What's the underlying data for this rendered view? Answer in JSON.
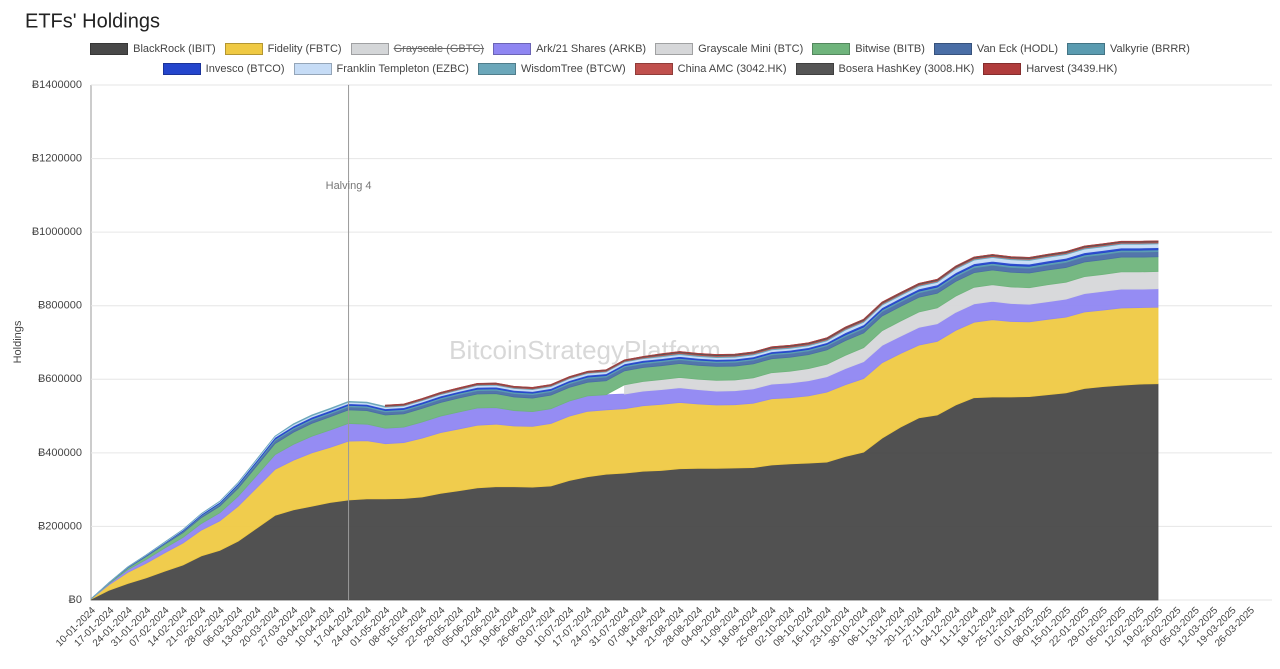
{
  "chart_data": {
    "type": "stacked-area",
    "title": "ETFs' Holdings",
    "y_label": "Holdings",
    "watermark": "BitcoinStrategyPlatform",
    "categories": [
      "10-01-2024",
      "17-01-2024",
      "24-01-2024",
      "31-01-2024",
      "07-02-2024",
      "14-02-2024",
      "21-02-2024",
      "28-02-2024",
      "06-03-2024",
      "13-03-2024",
      "20-03-2024",
      "27-03-2024",
      "03-04-2024",
      "10-04-2024",
      "17-04-2024",
      "24-04-2024",
      "01-05-2024",
      "08-05-2024",
      "15-05-2024",
      "22-05-2024",
      "29-05-2024",
      "05-06-2024",
      "12-06-2024",
      "19-06-2024",
      "26-06-2024",
      "03-07-2024",
      "10-07-2024",
      "17-07-2024",
      "24-07-2024",
      "31-07-2024",
      "07-08-2024",
      "14-08-2024",
      "21-08-2024",
      "28-08-2024",
      "04-09-2024",
      "11-09-2024",
      "18-09-2024",
      "25-09-2024",
      "02-10-2024",
      "09-10-2024",
      "16-10-2024",
      "23-10-2024",
      "30-10-2024",
      "06-11-2024",
      "13-11-2024",
      "20-11-2024",
      "27-11-2024",
      "04-12-2024",
      "11-12-2024",
      "18-12-2024",
      "25-12-2024",
      "01-01-2025",
      "08-01-2025",
      "15-01-2025",
      "22-01-2025",
      "29-01-2025",
      "05-02-2025",
      "12-02-2025",
      "19-02-2025",
      "26-02-2025",
      "05-03-2025",
      "12-03-2025",
      "19-03-2025",
      "26-03-2025"
    ],
    "ylim": [
      0,
      1400000
    ],
    "yticks": [
      {
        "value": 0,
        "label": "Ƀ0"
      },
      {
        "value": 200000,
        "label": "Ƀ200000"
      },
      {
        "value": 400000,
        "label": "Ƀ400000"
      },
      {
        "value": 600000,
        "label": "Ƀ600000"
      },
      {
        "value": 800000,
        "label": "Ƀ800000"
      },
      {
        "value": 1000000,
        "label": "Ƀ1000000"
      },
      {
        "value": 1200000,
        "label": "Ƀ1200000"
      },
      {
        "value": 1400000,
        "label": "Ƀ1400000"
      }
    ],
    "grid": true,
    "annotations": [
      {
        "label": "Halving 4",
        "at": "17-04-2024"
      }
    ],
    "series": [
      {
        "name": "BlackRock (IBIT)",
        "color": "#484848",
        "values": [
          2000,
          27000,
          45000,
          60000,
          78000,
          95000,
          120000,
          135000,
          160000,
          195000,
          230000,
          245000,
          255000,
          265000,
          272000,
          275000,
          275000,
          276000,
          280000,
          290000,
          297000,
          305000,
          308000,
          308000,
          307000,
          310000,
          325000,
          335000,
          342000,
          345000,
          350000,
          352000,
          357000,
          358000,
          358000,
          359000,
          360000,
          367000,
          370000,
          372000,
          375000,
          390000,
          402000,
          440000,
          470000,
          495000,
          503000,
          530000,
          550000,
          552000,
          552000,
          553000,
          558000,
          563000,
          575000,
          580000,
          584000,
          587000,
          588000,
          null,
          null,
          null,
          null,
          null
        ]
      },
      {
        "name": "Fidelity (FBTC)",
        "color": "#efc943",
        "values": [
          1000,
          15000,
          30000,
          40000,
          50000,
          60000,
          70000,
          80000,
          95000,
          110000,
          125000,
          135000,
          145000,
          150000,
          160000,
          158000,
          150000,
          152000,
          160000,
          165000,
          168000,
          170000,
          170000,
          165000,
          165000,
          170000,
          175000,
          178000,
          175000,
          175000,
          178000,
          180000,
          180000,
          175000,
          172000,
          172000,
          175000,
          180000,
          180000,
          183000,
          190000,
          195000,
          200000,
          205000,
          200000,
          198000,
          200000,
          203000,
          205000,
          210000,
          205000,
          203000,
          205000,
          206000,
          208000,
          208000,
          210000,
          208000,
          208000,
          null,
          null,
          null,
          null,
          null
        ]
      },
      {
        "name": "Grayscale (GBTC)",
        "color": "#d4d6d8",
        "hidden": true
      },
      {
        "name": "Ark/21 Shares (ARKB)",
        "color": "#8f86f2",
        "values": [
          0,
          3000,
          7000,
          10000,
          13000,
          15000,
          18000,
          22000,
          27000,
          33000,
          40000,
          43000,
          45000,
          47000,
          48000,
          45000,
          42000,
          42000,
          44000,
          45000,
          46000,
          47000,
          45000,
          42000,
          40000,
          40000,
          41000,
          42000,
          41000,
          40000,
          40000,
          40000,
          40000,
          39000,
          38000,
          38000,
          39000,
          40000,
          40000,
          41000,
          42000,
          44000,
          46000,
          47000,
          47000,
          48000,
          48000,
          49000,
          50000,
          50000,
          49000,
          48000,
          48000,
          49000,
          50000,
          51000,
          51000,
          50000,
          50000,
          null,
          null,
          null,
          null,
          null
        ]
      },
      {
        "name": "Grayscale Mini (BTC)",
        "color": "#d6d7d9",
        "values": [
          null,
          null,
          null,
          null,
          null,
          null,
          null,
          null,
          null,
          null,
          null,
          null,
          null,
          null,
          null,
          null,
          null,
          null,
          null,
          null,
          null,
          null,
          null,
          null,
          null,
          null,
          null,
          null,
          null,
          25000,
          26000,
          27000,
          28000,
          28000,
          29000,
          29000,
          30000,
          31000,
          32000,
          33000,
          34000,
          36000,
          38000,
          40000,
          41000,
          42000,
          43000,
          44000,
          45000,
          45000,
          45000,
          45000,
          46000,
          46000,
          46000,
          46000,
          47000,
          47000,
          47000,
          null,
          null,
          null,
          null,
          null
        ]
      },
      {
        "name": "Bitwise (BITB)",
        "color": "#6fb47c",
        "values": [
          0,
          2000,
          5000,
          8000,
          10000,
          13000,
          16000,
          18000,
          22000,
          26000,
          30000,
          33000,
          35000,
          36000,
          37000,
          37000,
          36000,
          36000,
          37000,
          37000,
          38000,
          38000,
          38000,
          37000,
          37000,
          37000,
          37000,
          37000,
          38000,
          38000,
          38000,
          38000,
          38000,
          38000,
          38000,
          38000,
          38000,
          38000,
          38000,
          38000,
          39000,
          40000,
          40000,
          40000,
          40000,
          40000,
          40000,
          40000,
          40000,
          40000,
          40000,
          40000,
          40000,
          40000,
          40000,
          40000,
          40000,
          40000,
          40000,
          null,
          null,
          null,
          null,
          null
        ]
      },
      {
        "name": "Van Eck (HODL)",
        "color": "#4a6ea6",
        "values": [
          0,
          500,
          1000,
          1500,
          2000,
          3000,
          4000,
          5000,
          6000,
          7000,
          8000,
          8000,
          8000,
          8000,
          8000,
          8000,
          8000,
          8000,
          8000,
          8500,
          9000,
          9000,
          9000,
          9000,
          9000,
          9000,
          9500,
          10000,
          10000,
          10000,
          10000,
          10000,
          10000,
          10000,
          10000,
          10000,
          10000,
          10000,
          10000,
          10000,
          10500,
          11000,
          11500,
          12000,
          12000,
          12000,
          12000,
          12500,
          13000,
          13000,
          13000,
          13000,
          13500,
          14000,
          14000,
          14000,
          14000,
          14000,
          14000,
          null,
          null,
          null,
          null,
          null
        ]
      },
      {
        "name": "Valkyrie (BRRR)",
        "color": "#5a9bb0",
        "values": [
          0,
          200,
          500,
          800,
          1000,
          1500,
          2000,
          2500,
          3000,
          3500,
          4000,
          4000,
          4000,
          4000,
          4000,
          4000,
          4000,
          4000,
          4000,
          4000,
          4000,
          4000,
          4000,
          4000,
          4000,
          4000,
          4000,
          4000,
          4000,
          4000,
          4000,
          4000,
          4000,
          4000,
          4000,
          4000,
          4000,
          4000,
          4000,
          4000,
          4000,
          4500,
          4500,
          4500,
          4500,
          4500,
          4500,
          5000,
          5000,
          5000,
          5000,
          5000,
          5000,
          5000,
          5000,
          5000,
          5000,
          5000,
          5000,
          null,
          null,
          null,
          null,
          null
        ]
      },
      {
        "name": "Invesco (BTCO)",
        "color": "#2445cc",
        "values": [
          0,
          500,
          1000,
          1500,
          2000,
          2500,
          3000,
          3500,
          4000,
          4500,
          5000,
          5000,
          5000,
          5000,
          5000,
          5000,
          5000,
          5000,
          5000,
          5000,
          5000,
          5000,
          5000,
          5000,
          5000,
          5000,
          5000,
          5000,
          5000,
          5000,
          5000,
          5000,
          5000,
          5000,
          5000,
          5000,
          5000,
          5000,
          5000,
          5000,
          5000,
          6000,
          6000,
          6000,
          6000,
          6000,
          6000,
          6000,
          6000,
          6000,
          6000,
          6000,
          6000,
          6000,
          6000,
          6000,
          6000,
          6000,
          6000,
          null,
          null,
          null,
          null,
          null
        ]
      },
      {
        "name": "Franklin Templeton (EZBC)",
        "color": "#c6dcf6",
        "values": [
          0,
          300,
          600,
          900,
          1200,
          1500,
          1800,
          2100,
          2400,
          2700,
          3000,
          4000,
          4000,
          4000,
          4000,
          4000,
          4000,
          4000,
          4000,
          4000,
          4000,
          5000,
          5000,
          5000,
          5000,
          5000,
          5000,
          5000,
          5000,
          5000,
          5000,
          5000,
          5000,
          5000,
          5000,
          5000,
          5000,
          5000,
          5000,
          5000,
          5000,
          7000,
          7000,
          7000,
          7000,
          7000,
          7000,
          10000,
          10000,
          10000,
          10000,
          10000,
          10000,
          10000,
          10000,
          10000,
          10000,
          10000,
          10000,
          null,
          null,
          null,
          null,
          null
        ]
      },
      {
        "name": "WisdomTree (BTCW)",
        "color": "#6ba7ba",
        "values": [
          0,
          50,
          100,
          150,
          200,
          250,
          300,
          350,
          400,
          450,
          500,
          2000,
          2000,
          2000,
          2000,
          2000,
          2000,
          2000,
          2000,
          2000,
          2000,
          2000,
          2000,
          2000,
          2000,
          2000,
          2000,
          2000,
          2000,
          2000,
          2000,
          3000,
          3000,
          3000,
          3000,
          3000,
          3000,
          3000,
          3000,
          3000,
          3000,
          3000,
          3000,
          3000,
          3000,
          3000,
          3000,
          3000,
          3000,
          3000,
          3000,
          3000,
          3000,
          3000,
          3000,
          3000,
          3000,
          3000,
          3000,
          null,
          null,
          null,
          null,
          null
        ]
      },
      {
        "name": "China AMC (3042.HK)",
        "color": "#c0504d",
        "values": [
          null,
          null,
          null,
          null,
          null,
          null,
          null,
          null,
          null,
          null,
          null,
          null,
          null,
          null,
          null,
          null,
          2000,
          2000,
          2000,
          2000,
          2000,
          2000,
          2000,
          2000,
          2000,
          2000,
          2000,
          2000,
          2000,
          2000,
          2000,
          2500,
          2500,
          2500,
          2500,
          2500,
          2500,
          2500,
          2500,
          2500,
          2500,
          2500,
          2500,
          2500,
          2500,
          2500,
          2500,
          2500,
          2500,
          2500,
          2500,
          2500,
          2500,
          2500,
          2500,
          2500,
          2500,
          2500,
          2500,
          null,
          null,
          null,
          null,
          null
        ]
      },
      {
        "name": "Bosera HashKey (3008.HK)",
        "color": "#555555",
        "values": [
          null,
          null,
          null,
          null,
          null,
          null,
          null,
          null,
          null,
          null,
          null,
          null,
          null,
          null,
          null,
          null,
          1500,
          1500,
          1500,
          1500,
          1500,
          1500,
          1500,
          1500,
          1500,
          1500,
          1500,
          1500,
          1500,
          1500,
          1500,
          2500,
          2500,
          2500,
          2500,
          2500,
          2500,
          2500,
          2500,
          2500,
          2500,
          2500,
          2500,
          2500,
          2500,
          2500,
          2500,
          2500,
          2500,
          2500,
          2500,
          2500,
          2500,
          2500,
          2500,
          2500,
          2500,
          2500,
          2500,
          null,
          null,
          null,
          null,
          null
        ]
      },
      {
        "name": "Harvest (3439.HK)",
        "color": "#b03c3c",
        "values": [
          null,
          null,
          null,
          null,
          null,
          null,
          null,
          null,
          null,
          null,
          null,
          null,
          null,
          null,
          null,
          null,
          300,
          300,
          300,
          300,
          300,
          300,
          300,
          300,
          300,
          300,
          300,
          300,
          300,
          300,
          300,
          300,
          300,
          300,
          300,
          300,
          300,
          300,
          300,
          300,
          300,
          300,
          300,
          300,
          300,
          300,
          300,
          300,
          300,
          300,
          300,
          300,
          300,
          300,
          300,
          300,
          300,
          300,
          300,
          null,
          null,
          null,
          null,
          null
        ]
      }
    ]
  }
}
